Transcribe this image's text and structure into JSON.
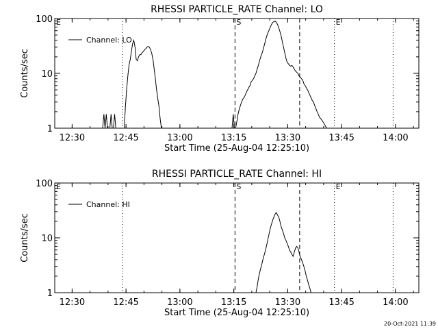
{
  "footer": {
    "timestamp": "20-Oct-2021 11:39"
  },
  "chart_data": [
    {
      "type": "line",
      "title": "RHESSI PARTICLE_RATE Channel: LO",
      "xlabel": "Start Time (25-Aug-04 12:25:10)",
      "ylabel": "Counts/sec",
      "yscale": "log",
      "ylim": [
        1,
        100
      ],
      "xlim": [
        "12:25:10",
        "14:06:30"
      ],
      "x_ticks": [
        "12:30",
        "12:45",
        "13:00",
        "13:15",
        "13:30",
        "13:45",
        "14:00"
      ],
      "y_ticks": [
        "1",
        "10",
        "100"
      ],
      "legend": {
        "label": "Channel: LO",
        "placement": "top-left"
      },
      "markers": [
        {
          "time": "12:44:00",
          "style": "dotted",
          "label": ""
        },
        {
          "time": "13:15:20",
          "style": "dashed",
          "label": "S"
        },
        {
          "time": "13:33:20",
          "style": "dashed",
          "label": ""
        },
        {
          "time": "13:43:00",
          "style": "dotted",
          "label": "E"
        },
        {
          "time": "13:59:20",
          "style": "dotted",
          "label": ""
        }
      ],
      "corner_labels": [
        "E"
      ],
      "series": [
        {
          "x": [
            "12:38:30",
            "12:38:50",
            "12:39:10",
            "12:39:30",
            "12:39:50",
            "12:40:10",
            "12:40:30",
            "12:40:50",
            "12:41:10",
            "12:41:30",
            "12:41:50",
            "12:42:10",
            "12:42:30",
            "12:42:50",
            "12:43:10",
            "12:43:30",
            "12:43:50",
            "12:44:10",
            "12:44:30",
            "12:44:50",
            "12:45:10",
            "12:45:30",
            "12:45:50",
            "12:46:10",
            "12:46:30",
            "12:46:50",
            "12:47:10",
            "12:47:30",
            "12:47:50",
            "12:48:10",
            "12:48:30",
            "12:48:50",
            "12:49:10",
            "12:49:30",
            "12:49:50",
            "12:50:10",
            "12:50:30",
            "12:50:50",
            "12:51:10",
            "12:51:30",
            "12:51:50",
            "12:52:10",
            "12:52:30",
            "12:52:50",
            "12:53:10",
            "12:53:30",
            "12:53:50",
            "12:54:10",
            "12:54:30",
            "12:54:50",
            "12:55:10",
            "12:55:30",
            "12:55:50",
            "12:56:10",
            "12:56:30",
            "12:56:50",
            "12:57:10",
            "12:57:30",
            "12:57:50",
            "12:58:10",
            "12:58:30",
            "12:58:50",
            "12:59:10",
            "12:59:30"
          ],
          "y": [
            1,
            1.8,
            1,
            1.8,
            1,
            1,
            1,
            1.8,
            1,
            1,
            1.8,
            1,
            1,
            1,
            1,
            1,
            1,
            1,
            1,
            2.5,
            5,
            9,
            14,
            18,
            25,
            35,
            40,
            30,
            18,
            17,
            20,
            22,
            22,
            24,
            25,
            27,
            28,
            30,
            31,
            30,
            27,
            23,
            18,
            12,
            8,
            5,
            3.5,
            2.5,
            1.5,
            1,
            1,
            1,
            1,
            1,
            1,
            1,
            1,
            1,
            1,
            1,
            1,
            1,
            1,
            1
          ]
        },
        {
          "x": [
            "13:14:30",
            "13:14:50",
            "13:15:10",
            "13:15:30",
            "13:15:50",
            "13:16:10",
            "13:16:30",
            "13:16:50",
            "13:17:10",
            "13:17:30",
            "13:17:50",
            "13:18:10",
            "13:18:30",
            "13:18:50",
            "13:19:10",
            "13:19:30",
            "13:19:50",
            "13:20:10",
            "13:20:30",
            "13:20:50",
            "13:21:10",
            "13:21:30",
            "13:21:50",
            "13:22:10",
            "13:22:30",
            "13:22:50",
            "13:23:10",
            "13:23:30",
            "13:23:50",
            "13:24:10",
            "13:24:30",
            "13:24:50",
            "13:25:10",
            "13:25:30",
            "13:25:50",
            "13:26:10",
            "13:26:30",
            "13:26:50",
            "13:27:10",
            "13:27:30",
            "13:27:50",
            "13:28:10",
            "13:28:30",
            "13:28:50",
            "13:29:10",
            "13:29:30",
            "13:29:50",
            "13:30:10",
            "13:30:30",
            "13:30:50",
            "13:31:10",
            "13:31:30",
            "13:31:50",
            "13:32:10",
            "13:32:30",
            "13:32:50",
            "13:33:10",
            "13:33:30",
            "13:33:50",
            "13:34:10",
            "13:34:30",
            "13:34:50",
            "13:35:10",
            "13:35:30",
            "13:35:50",
            "13:36:10",
            "13:36:30",
            "13:36:50",
            "13:37:10",
            "13:37:30",
            "13:37:50",
            "13:38:10",
            "13:38:30",
            "13:38:50",
            "13:39:10",
            "13:39:30",
            "13:39:50",
            "13:40:10",
            "13:40:30",
            "13:40:50",
            "13:41:10"
          ],
          "y": [
            1,
            1.8,
            1,
            1,
            1.3,
            1.8,
            2.2,
            2.6,
            3,
            3.4,
            3.6,
            4,
            4.5,
            5,
            5.5,
            6,
            7,
            7.5,
            8,
            9,
            10,
            12,
            14,
            17,
            20,
            23,
            27,
            33,
            40,
            48,
            55,
            62,
            70,
            78,
            85,
            88,
            90,
            85,
            78,
            68,
            58,
            48,
            38,
            30,
            24,
            19,
            16,
            15,
            14,
            13.5,
            14,
            13,
            12,
            11,
            10.5,
            10,
            9,
            8.5,
            8,
            7.5,
            6.5,
            6,
            5.5,
            5,
            4.5,
            4,
            3.6,
            3.2,
            3,
            2.6,
            2.3,
            2,
            1.8,
            1.6,
            1.5,
            1.4,
            1.3,
            1.2,
            1.1,
            1,
            1
          ]
        }
      ]
    },
    {
      "type": "line",
      "title": "RHESSI PARTICLE_RATE Channel: HI",
      "xlabel": "Start Time (25-Aug-04 12:25:10)",
      "ylabel": "Counts/sec",
      "yscale": "log",
      "ylim": [
        1,
        100
      ],
      "xlim": [
        "12:25:10",
        "14:06:30"
      ],
      "x_ticks": [
        "12:30",
        "12:45",
        "13:00",
        "13:15",
        "13:30",
        "13:45",
        "14:00"
      ],
      "y_ticks": [
        "1",
        "10",
        "100"
      ],
      "legend": {
        "label": "Channel: HI",
        "placement": "top-left"
      },
      "markers": [
        {
          "time": "12:44:00",
          "style": "dotted",
          "label": ""
        },
        {
          "time": "13:15:20",
          "style": "dashed",
          "label": "S"
        },
        {
          "time": "13:33:20",
          "style": "dashed",
          "label": ""
        },
        {
          "time": "13:43:00",
          "style": "dotted",
          "label": "E"
        },
        {
          "time": "13:59:20",
          "style": "dotted",
          "label": ""
        }
      ],
      "corner_labels": [
        "E"
      ],
      "series": [
        {
          "x": [
            "13:21:10",
            "13:21:30",
            "13:21:50",
            "13:22:10",
            "13:22:30",
            "13:22:50",
            "13:23:10",
            "13:23:30",
            "13:23:50",
            "13:24:10",
            "13:24:30",
            "13:24:50",
            "13:25:10",
            "13:25:30",
            "13:25:50",
            "13:26:10",
            "13:26:30",
            "13:26:50",
            "13:27:10",
            "13:27:30",
            "13:27:50",
            "13:28:10",
            "13:28:30",
            "13:28:50",
            "13:29:10",
            "13:29:30",
            "13:29:50",
            "13:30:10",
            "13:30:30",
            "13:30:50",
            "13:31:10",
            "13:31:30",
            "13:31:50",
            "13:32:10",
            "13:32:30",
            "13:32:50",
            "13:33:10",
            "13:33:30",
            "13:33:50",
            "13:34:10",
            "13:34:30",
            "13:34:50",
            "13:35:10",
            "13:35:30",
            "13:35:50",
            "13:36:10",
            "13:36:30",
            "13:36:50",
            "13:37:10"
          ],
          "y": [
            1,
            1.3,
            1.8,
            2.3,
            2.8,
            3.4,
            4.2,
            5,
            6,
            7.5,
            9.5,
            12,
            15,
            18,
            21,
            24,
            27,
            29,
            26,
            24,
            20,
            16,
            14,
            12,
            10,
            9,
            8,
            7,
            6,
            5.5,
            5,
            4.6,
            5.5,
            6.5,
            7,
            6.5,
            5.5,
            4.5,
            4,
            3.5,
            3,
            2.5,
            2,
            1.7,
            1.4,
            1.2,
            1,
            1,
            1
          ]
        }
      ]
    }
  ]
}
